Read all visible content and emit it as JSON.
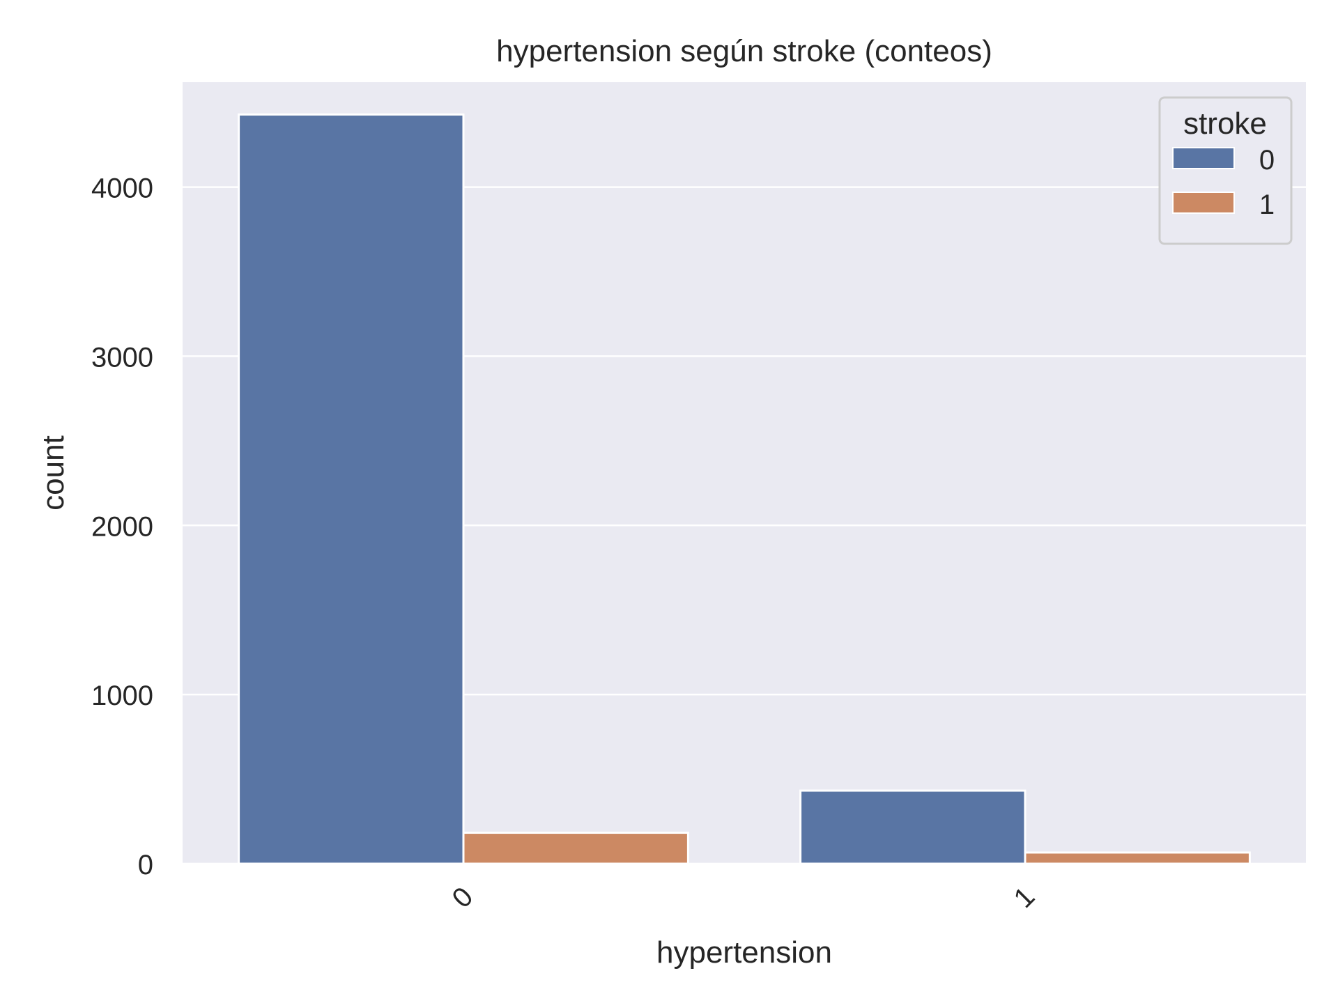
{
  "chart_data": {
    "type": "bar",
    "title": "hypertension según stroke (conteos)",
    "xlabel": "hypertension",
    "ylabel": "count",
    "categories": [
      "0",
      "1"
    ],
    "series": [
      {
        "name": "0",
        "values": [
          4429,
          432
        ]
      },
      {
        "name": "1",
        "values": [
          183,
          66
        ]
      }
    ],
    "ylim": [
      0,
      4620
    ],
    "yticks": [
      0,
      1000,
      2000,
      3000,
      4000
    ],
    "grid": true,
    "legend": {
      "title": "stroke",
      "position": "top-right"
    },
    "colors": {
      "series": [
        "#5975a4",
        "#cc8963"
      ],
      "plot_background": "#eaeaf2",
      "grid": "#ffffff",
      "text": "#262626"
    }
  }
}
